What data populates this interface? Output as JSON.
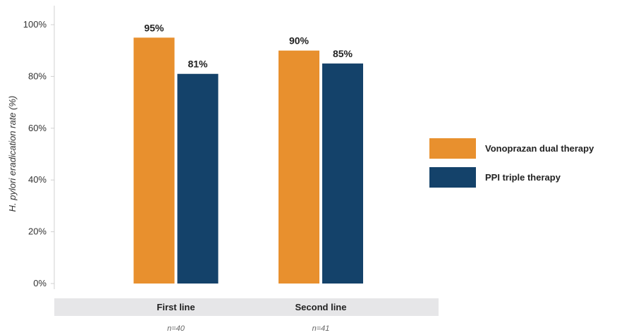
{
  "chart_data": {
    "type": "bar",
    "categories": [
      "First line",
      "Second line"
    ],
    "sample_sizes": [
      "n=40",
      "n=41"
    ],
    "series": [
      {
        "name": "Vonoprazan dual therapy",
        "values": [
          95,
          90
        ],
        "labels": [
          "95%",
          "90%"
        ],
        "color": "#E8902E"
      },
      {
        "name": "PPI triple therapy",
        "values": [
          81,
          85
        ],
        "labels": [
          "81%",
          "85%"
        ],
        "color": "#14426A"
      }
    ],
    "ylabel": "H. pylori eradication rate (%)",
    "ylim": [
      0,
      100
    ],
    "yticks": [
      0,
      20,
      40,
      60,
      80,
      100
    ],
    "ytick_labels": [
      "0%",
      "20%",
      "40%",
      "60%",
      "80%",
      "100%"
    ],
    "grid": false,
    "legend_position": "right",
    "category_band_color": "#E6E6E8"
  }
}
